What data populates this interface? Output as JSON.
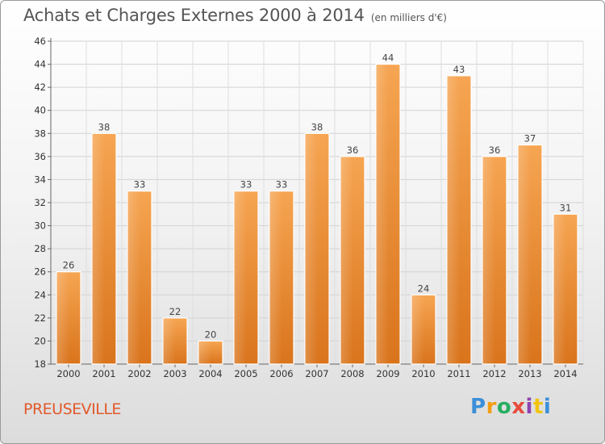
{
  "header": {
    "title": "Achats et Charges Externes 2000 à 2014",
    "subtitle": "(en milliers d'€)"
  },
  "commune": "PREUSEVILLE",
  "brand": {
    "letters": [
      "P",
      "r",
      "o",
      "x",
      "i",
      "t",
      "i"
    ],
    "colors": [
      "#3b8fd8",
      "#f39c12",
      "#27ae60",
      "#e74c3c",
      "#8e44ad",
      "#f1c40f",
      "#3b8fd8"
    ]
  },
  "chart_data": {
    "type": "bar",
    "title": "Achats et Charges Externes 2000 à 2014",
    "subtitle": "(en milliers d'€)",
    "categories": [
      "2000",
      "2001",
      "2002",
      "2003",
      "2004",
      "2005",
      "2006",
      "2007",
      "2008",
      "2009",
      "2010",
      "2011",
      "2012",
      "2013",
      "2014"
    ],
    "values": [
      26,
      38,
      33,
      22,
      20,
      33,
      33,
      38,
      36,
      44,
      24,
      43,
      36,
      37,
      31
    ],
    "ylim": [
      18,
      46
    ],
    "yticks": [
      18,
      20,
      22,
      24,
      26,
      28,
      30,
      32,
      34,
      36,
      38,
      40,
      42,
      44,
      46
    ],
    "grid": true,
    "bar_color": "#f39c45",
    "bar_color_dark": "#d9741c"
  }
}
